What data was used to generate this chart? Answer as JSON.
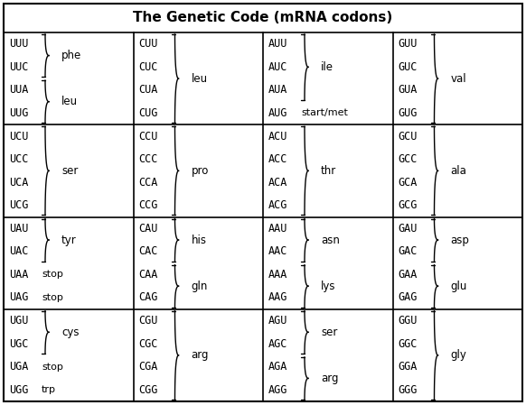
{
  "title": "The Genetic Code (mRNA codons)",
  "title_fontsize": 11,
  "codon_fontsize": 8.5,
  "label_fontsize": 8.5,
  "background_color": "#ffffff",
  "rows": [
    {
      "cols": [
        {
          "codons": [
            "UUU",
            "UUC",
            "UUA",
            "UUG"
          ],
          "groups": [
            {
              "lines": [
                0,
                1
              ],
              "label": "phe"
            },
            {
              "lines": [
                2,
                3
              ],
              "label": "leu"
            }
          ],
          "singles": []
        },
        {
          "codons": [
            "CUU",
            "CUC",
            "CUA",
            "CUG"
          ],
          "groups": [
            {
              "lines": [
                0,
                1,
                2,
                3
              ],
              "label": "leu"
            }
          ],
          "singles": []
        },
        {
          "codons": [
            "AUU",
            "AUC",
            "AUA",
            "AUG"
          ],
          "groups": [
            {
              "lines": [
                0,
                1,
                2
              ],
              "label": "ile"
            }
          ],
          "singles": [
            {
              "line": 3,
              "label": "start/met"
            }
          ]
        },
        {
          "codons": [
            "GUU",
            "GUC",
            "GUA",
            "GUG"
          ],
          "groups": [
            {
              "lines": [
                0,
                1,
                2,
                3
              ],
              "label": "val"
            }
          ],
          "singles": []
        }
      ]
    },
    {
      "cols": [
        {
          "codons": [
            "UCU",
            "UCC",
            "UCA",
            "UCG"
          ],
          "groups": [
            {
              "lines": [
                0,
                1,
                2,
                3
              ],
              "label": "ser"
            }
          ],
          "singles": []
        },
        {
          "codons": [
            "CCU",
            "CCC",
            "CCA",
            "CCG"
          ],
          "groups": [
            {
              "lines": [
                0,
                1,
                2,
                3
              ],
              "label": "pro"
            }
          ],
          "singles": []
        },
        {
          "codons": [
            "ACU",
            "ACC",
            "ACA",
            "ACG"
          ],
          "groups": [
            {
              "lines": [
                0,
                1,
                2,
                3
              ],
              "label": "thr"
            }
          ],
          "singles": []
        },
        {
          "codons": [
            "GCU",
            "GCC",
            "GCA",
            "GCG"
          ],
          "groups": [
            {
              "lines": [
                0,
                1,
                2,
                3
              ],
              "label": "ala"
            }
          ],
          "singles": []
        }
      ]
    },
    {
      "cols": [
        {
          "codons": [
            "UAU",
            "UAC",
            "UAA",
            "UAG"
          ],
          "groups": [
            {
              "lines": [
                0,
                1
              ],
              "label": "tyr"
            }
          ],
          "singles": [
            {
              "line": 2,
              "label": "stop"
            },
            {
              "line": 3,
              "label": "stop"
            }
          ]
        },
        {
          "codons": [
            "CAU",
            "CAC",
            "CAA",
            "CAG"
          ],
          "groups": [
            {
              "lines": [
                0,
                1
              ],
              "label": "his"
            },
            {
              "lines": [
                2,
                3
              ],
              "label": "gln"
            }
          ],
          "singles": []
        },
        {
          "codons": [
            "AAU",
            "AAC",
            "AAA",
            "AAG"
          ],
          "groups": [
            {
              "lines": [
                0,
                1
              ],
              "label": "asn"
            },
            {
              "lines": [
                2,
                3
              ],
              "label": "lys"
            }
          ],
          "singles": []
        },
        {
          "codons": [
            "GAU",
            "GAC",
            "GAA",
            "GAG"
          ],
          "groups": [
            {
              "lines": [
                0,
                1
              ],
              "label": "asp"
            },
            {
              "lines": [
                2,
                3
              ],
              "label": "glu"
            }
          ],
          "singles": []
        }
      ]
    },
    {
      "cols": [
        {
          "codons": [
            "UGU",
            "UGC",
            "UGA",
            "UGG"
          ],
          "groups": [
            {
              "lines": [
                0,
                1
              ],
              "label": "cys"
            }
          ],
          "singles": [
            {
              "line": 2,
              "label": "stop"
            },
            {
              "line": 3,
              "label": "trp"
            }
          ]
        },
        {
          "codons": [
            "CGU",
            "CGC",
            "CGA",
            "CGG"
          ],
          "groups": [
            {
              "lines": [
                0,
                1,
                2,
                3
              ],
              "label": "arg"
            }
          ],
          "singles": []
        },
        {
          "codons": [
            "AGU",
            "AGC",
            "AGA",
            "AGG"
          ],
          "groups": [
            {
              "lines": [
                0,
                1
              ],
              "label": "ser"
            },
            {
              "lines": [
                2,
                3
              ],
              "label": "arg"
            }
          ],
          "singles": []
        },
        {
          "codons": [
            "GGU",
            "GGC",
            "GGA",
            "GGG"
          ],
          "groups": [
            {
              "lines": [
                0,
                1,
                2,
                3
              ],
              "label": "gly"
            }
          ],
          "singles": []
        }
      ]
    }
  ]
}
